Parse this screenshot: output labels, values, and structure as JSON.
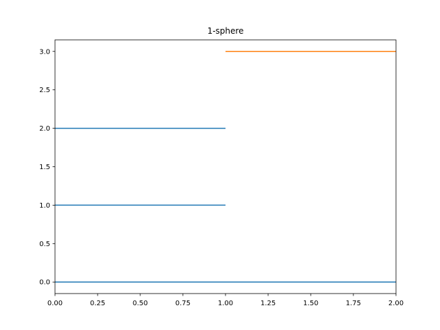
{
  "chart_data": {
    "type": "line",
    "title": "1-sphere",
    "xlabel": "",
    "ylabel": "",
    "xlim": [
      0.0,
      2.0
    ],
    "ylim": [
      -0.15,
      3.15
    ],
    "x_ticks": [
      "0.00",
      "0.25",
      "0.50",
      "0.75",
      "1.00",
      "1.25",
      "1.50",
      "1.75",
      "2.00"
    ],
    "y_ticks": [
      "0.0",
      "0.5",
      "1.0",
      "1.5",
      "2.0",
      "2.5",
      "3.0"
    ],
    "grid": false,
    "legend": "none",
    "series": [
      {
        "color": "#1f77b4",
        "segments": [
          {
            "x": [
              0.0,
              2.0
            ],
            "y": [
              0.0,
              0.0
            ]
          },
          {
            "x": [
              0.0,
              1.0
            ],
            "y": [
              1.0,
              1.0
            ]
          },
          {
            "x": [
              0.0,
              1.0
            ],
            "y": [
              2.0,
              2.0
            ]
          }
        ]
      },
      {
        "color": "#ff7f0e",
        "segments": [
          {
            "x": [
              1.0,
              2.0
            ],
            "y": [
              3.0,
              3.0
            ]
          }
        ]
      }
    ]
  }
}
